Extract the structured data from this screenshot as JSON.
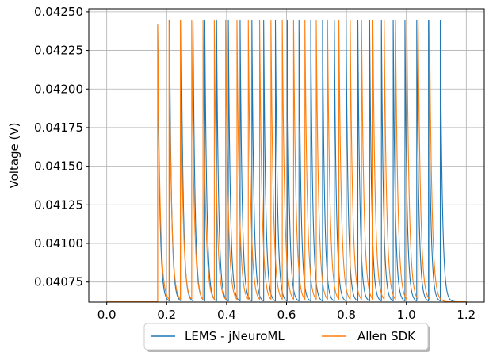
{
  "chart_data": {
    "type": "line",
    "title": "",
    "xlabel": "",
    "ylabel": "Voltage (V)",
    "xlim": [
      -0.06,
      1.26
    ],
    "ylim": [
      0.04062,
      0.04252
    ],
    "x_ticks": [
      0.0,
      0.2,
      0.4,
      0.6,
      0.8,
      1.0,
      1.2
    ],
    "x_tick_labels": [
      "0.0",
      "0.2",
      "0.4",
      "0.6",
      "0.8",
      "1.0",
      "1.2"
    ],
    "y_ticks": [
      0.04075,
      0.041,
      0.04125,
      0.0415,
      0.04175,
      0.042,
      0.04225,
      0.0425
    ],
    "y_tick_labels": [
      "0.04075",
      "0.04100",
      "0.04125",
      "0.04150",
      "0.04175",
      "0.04200",
      "0.04225",
      "0.04250"
    ],
    "grid": true,
    "legend": {
      "placement": "bottom-center, below axes",
      "columns": 2
    },
    "baseline_voltage": 0.040622,
    "reset_voltage": 0.042446,
    "first_spike_voltage": 0.042419,
    "stimulus_onset": 0.17,
    "series": [
      {
        "name": "LEMS - jNeuroML",
        "color": "#1f77b4",
        "spike_times": [
          0.17,
          0.2093,
          0.2486,
          0.2879,
          0.3272,
          0.3665,
          0.4058,
          0.4451,
          0.4844,
          0.5237,
          0.563,
          0.6023,
          0.6416,
          0.6809,
          0.7202,
          0.7595,
          0.7988,
          0.8381,
          0.8774,
          0.9167,
          0.956,
          0.9953,
          1.0346,
          1.0739,
          1.1132
        ],
        "decay_tau": 0.0068
      },
      {
        "name": "Allen SDK",
        "color": "#ff7f0e",
        "spike_times": [
          0.17,
          0.2078,
          0.2456,
          0.2834,
          0.3212,
          0.359,
          0.3968,
          0.4346,
          0.4724,
          0.5102,
          0.548,
          0.5858,
          0.6236,
          0.6614,
          0.6992,
          0.737,
          0.7748,
          0.8126,
          0.8504,
          0.8882,
          0.926,
          0.9638,
          1.0016,
          1.0394,
          1.0772
        ],
        "decay_tau": 0.008
      }
    ]
  }
}
